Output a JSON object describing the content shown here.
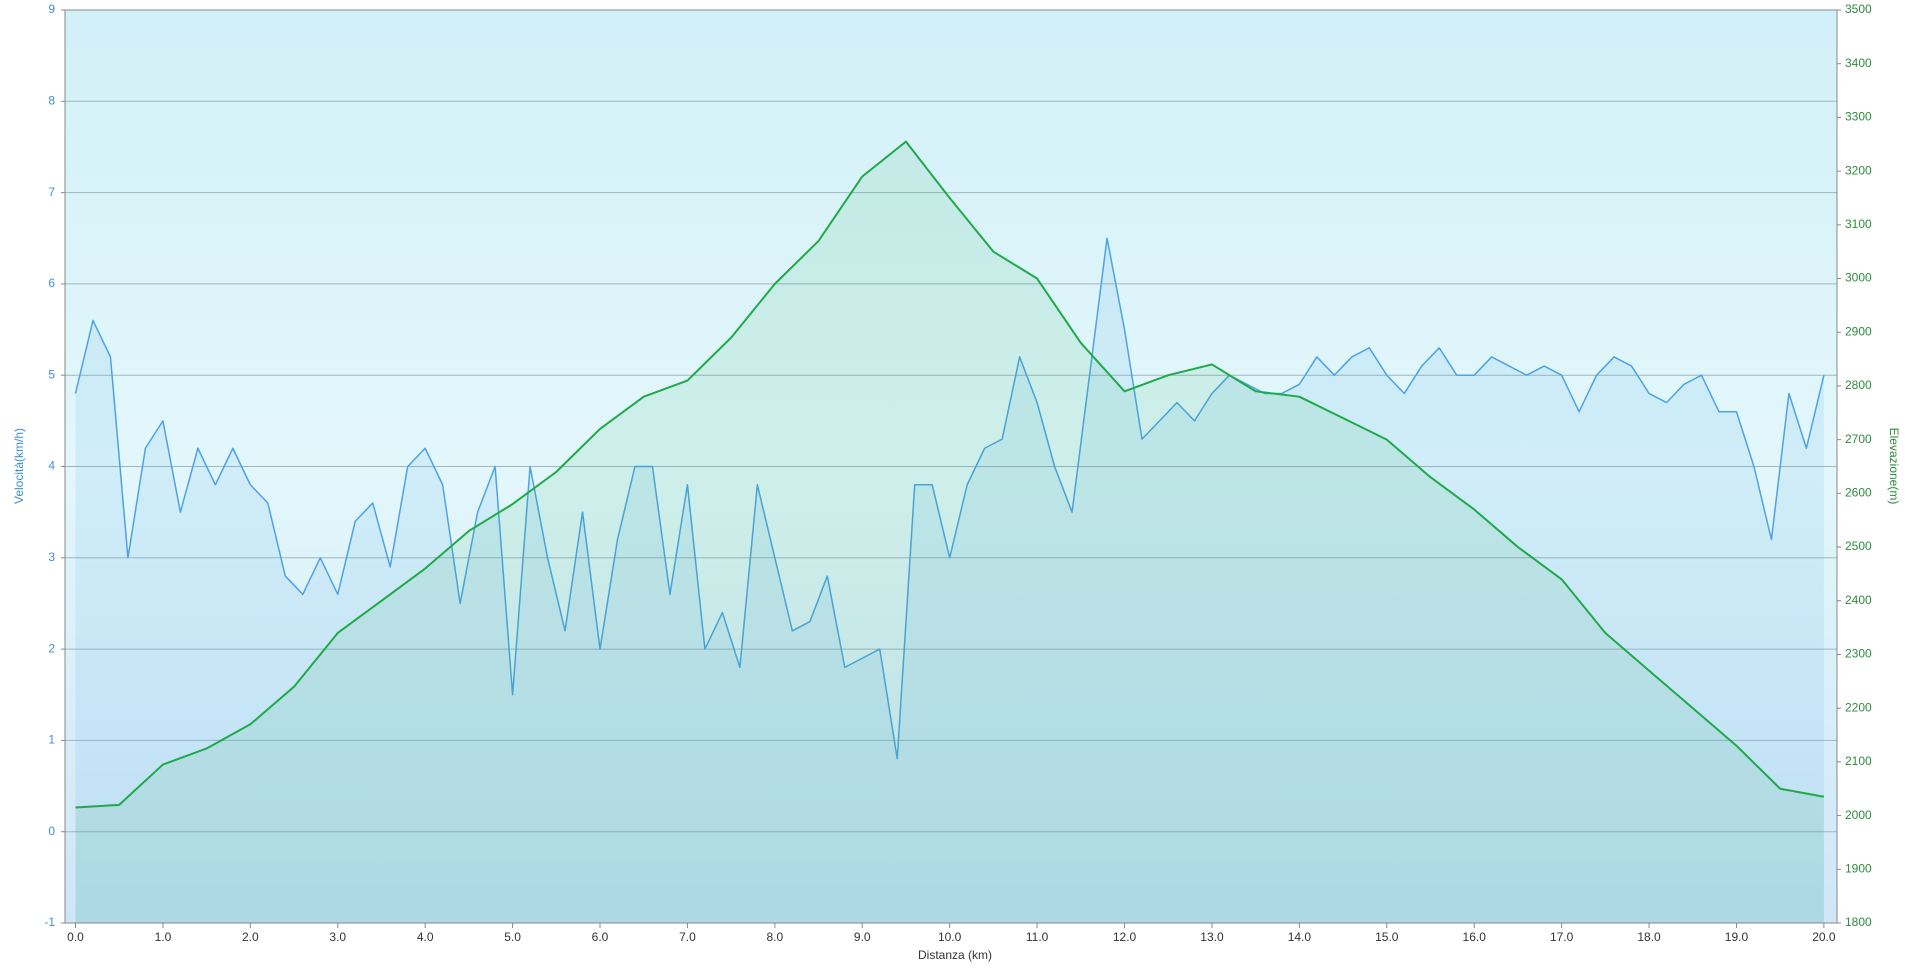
{
  "chart_data": {
    "type": "line",
    "xlabel": "Distanza  (km)",
    "ylabel": "Velocità(km/h)",
    "y2label": "Elevazione(m)",
    "xlim": [
      -0.12,
      20.15
    ],
    "ylim": [
      -1,
      9
    ],
    "y2lim": [
      1800,
      3500
    ],
    "xticks": [
      {
        "value": 0,
        "label": "0.0"
      },
      {
        "value": 1,
        "label": "1.0"
      },
      {
        "value": 2,
        "label": "2.0"
      },
      {
        "value": 3,
        "label": "3.0"
      },
      {
        "value": 4,
        "label": "4.0"
      },
      {
        "value": 5,
        "label": "5.0"
      },
      {
        "value": 6,
        "label": "6.0"
      },
      {
        "value": 7,
        "label": "7.0"
      },
      {
        "value": 8,
        "label": "8.0"
      },
      {
        "value": 9,
        "label": "9.0"
      },
      {
        "value": 10,
        "label": "10.0"
      },
      {
        "value": 11,
        "label": "11.0"
      },
      {
        "value": 12,
        "label": "12.0"
      },
      {
        "value": 13,
        "label": "13.0"
      },
      {
        "value": 14,
        "label": "14.0"
      },
      {
        "value": 15,
        "label": "15.0"
      },
      {
        "value": 16,
        "label": "16.0"
      },
      {
        "value": 17,
        "label": "17.0"
      },
      {
        "value": 18,
        "label": "18.0"
      },
      {
        "value": 19,
        "label": "19.0"
      },
      {
        "value": 20,
        "label": "20.0"
      }
    ],
    "yticks": [
      -1,
      0,
      1,
      2,
      3,
      4,
      5,
      6,
      7,
      8,
      9
    ],
    "y2ticks": [
      1800,
      1900,
      2000,
      2100,
      2200,
      2300,
      2400,
      2500,
      2600,
      2700,
      2800,
      2900,
      3000,
      3100,
      3200,
      3300,
      3400,
      3500
    ],
    "grid": true,
    "series": [
      {
        "color": "#4da3e6",
        "axis": "y",
        "x": [
          0,
          0.2,
          0.4,
          0.6,
          0.8,
          1,
          1.2,
          1.4,
          1.6,
          1.8,
          2,
          2.2,
          2.4,
          2.6,
          2.8,
          3,
          3.2,
          3.4,
          3.6,
          3.8,
          4,
          4.2,
          4.4,
          4.6,
          4.8,
          5,
          5.2,
          5.4,
          5.6,
          5.8,
          6,
          6.2,
          6.4,
          6.6,
          6.8,
          7,
          7.2,
          7.4,
          7.6,
          7.8,
          8,
          8.2,
          8.4,
          8.6,
          8.8,
          9,
          9.2,
          9.4,
          9.6,
          9.8,
          10,
          10.2,
          10.4,
          10.6,
          10.8,
          11,
          11.2,
          11.4,
          11.6,
          11.8,
          12,
          12.2,
          12.4,
          12.6,
          12.8,
          13,
          13.2,
          13.4,
          13.6,
          13.8,
          14,
          14.2,
          14.4,
          14.6,
          14.8,
          15,
          15.2,
          15.4,
          15.6,
          15.8,
          16,
          16.2,
          16.4,
          16.6,
          16.8,
          17,
          17.2,
          17.4,
          17.6,
          17.8,
          18,
          18.2,
          18.4,
          18.6,
          18.8,
          19,
          19.2,
          19.4,
          19.6,
          19.8,
          20
        ],
        "values": [
          4.8,
          5.6,
          5.2,
          3.0,
          4.2,
          4.5,
          3.5,
          4.2,
          3.8,
          4.2,
          3.8,
          3.6,
          2.8,
          2.6,
          3.0,
          2.6,
          3.4,
          3.6,
          2.9,
          4.0,
          4.2,
          3.8,
          2.5,
          3.5,
          4.0,
          1.5,
          4.0,
          3.0,
          2.2,
          3.5,
          2.0,
          3.2,
          4.0,
          4.0,
          2.6,
          3.8,
          2.0,
          2.4,
          1.8,
          3.8,
          3.0,
          2.2,
          2.3,
          2.8,
          1.8,
          1.9,
          2.0,
          0.8,
          3.8,
          3.8,
          3.0,
          3.8,
          4.2,
          4.3,
          5.2,
          4.7,
          4.0,
          3.5,
          5.0,
          6.5,
          5.5,
          4.3,
          4.5,
          4.7,
          4.5,
          4.8,
          5.0,
          4.9,
          4.8,
          4.8,
          4.9,
          5.2,
          5.0,
          5.2,
          5.3,
          5.0,
          4.8,
          5.1,
          5.3,
          5.0,
          5.0,
          5.2,
          5.1,
          5.0,
          5.1,
          5.0,
          4.6,
          5.0,
          5.2,
          5.1,
          4.8,
          4.7,
          4.9,
          5.0,
          4.6,
          4.6,
          4.0,
          3.2,
          4.8,
          4.2,
          5.0
        ]
      },
      {
        "color": "#1faa4a",
        "axis": "y2",
        "x": [
          0,
          0.5,
          1,
          1.5,
          2,
          2.5,
          3,
          3.5,
          4,
          4.5,
          5,
          5.5,
          6,
          6.5,
          7,
          7.5,
          8,
          8.5,
          9,
          9.5,
          10,
          10.5,
          11,
          11.5,
          12,
          12.5,
          13,
          13.5,
          14,
          14.5,
          15,
          15.5,
          16,
          16.5,
          17,
          17.5,
          18,
          18.5,
          19,
          19.5,
          20
        ],
        "values": [
          2015,
          2020,
          2095,
          2125,
          2170,
          2240,
          2340,
          2400,
          2460,
          2530,
          2580,
          2640,
          2720,
          2780,
          2810,
          2890,
          2990,
          3070,
          3190,
          3255,
          3150,
          3050,
          3000,
          2880,
          2790,
          2820,
          2840,
          2790,
          2780,
          2740,
          2700,
          2630,
          2570,
          2500,
          2440,
          2340,
          2270,
          2200,
          2130,
          2050,
          2035
        ]
      }
    ]
  }
}
